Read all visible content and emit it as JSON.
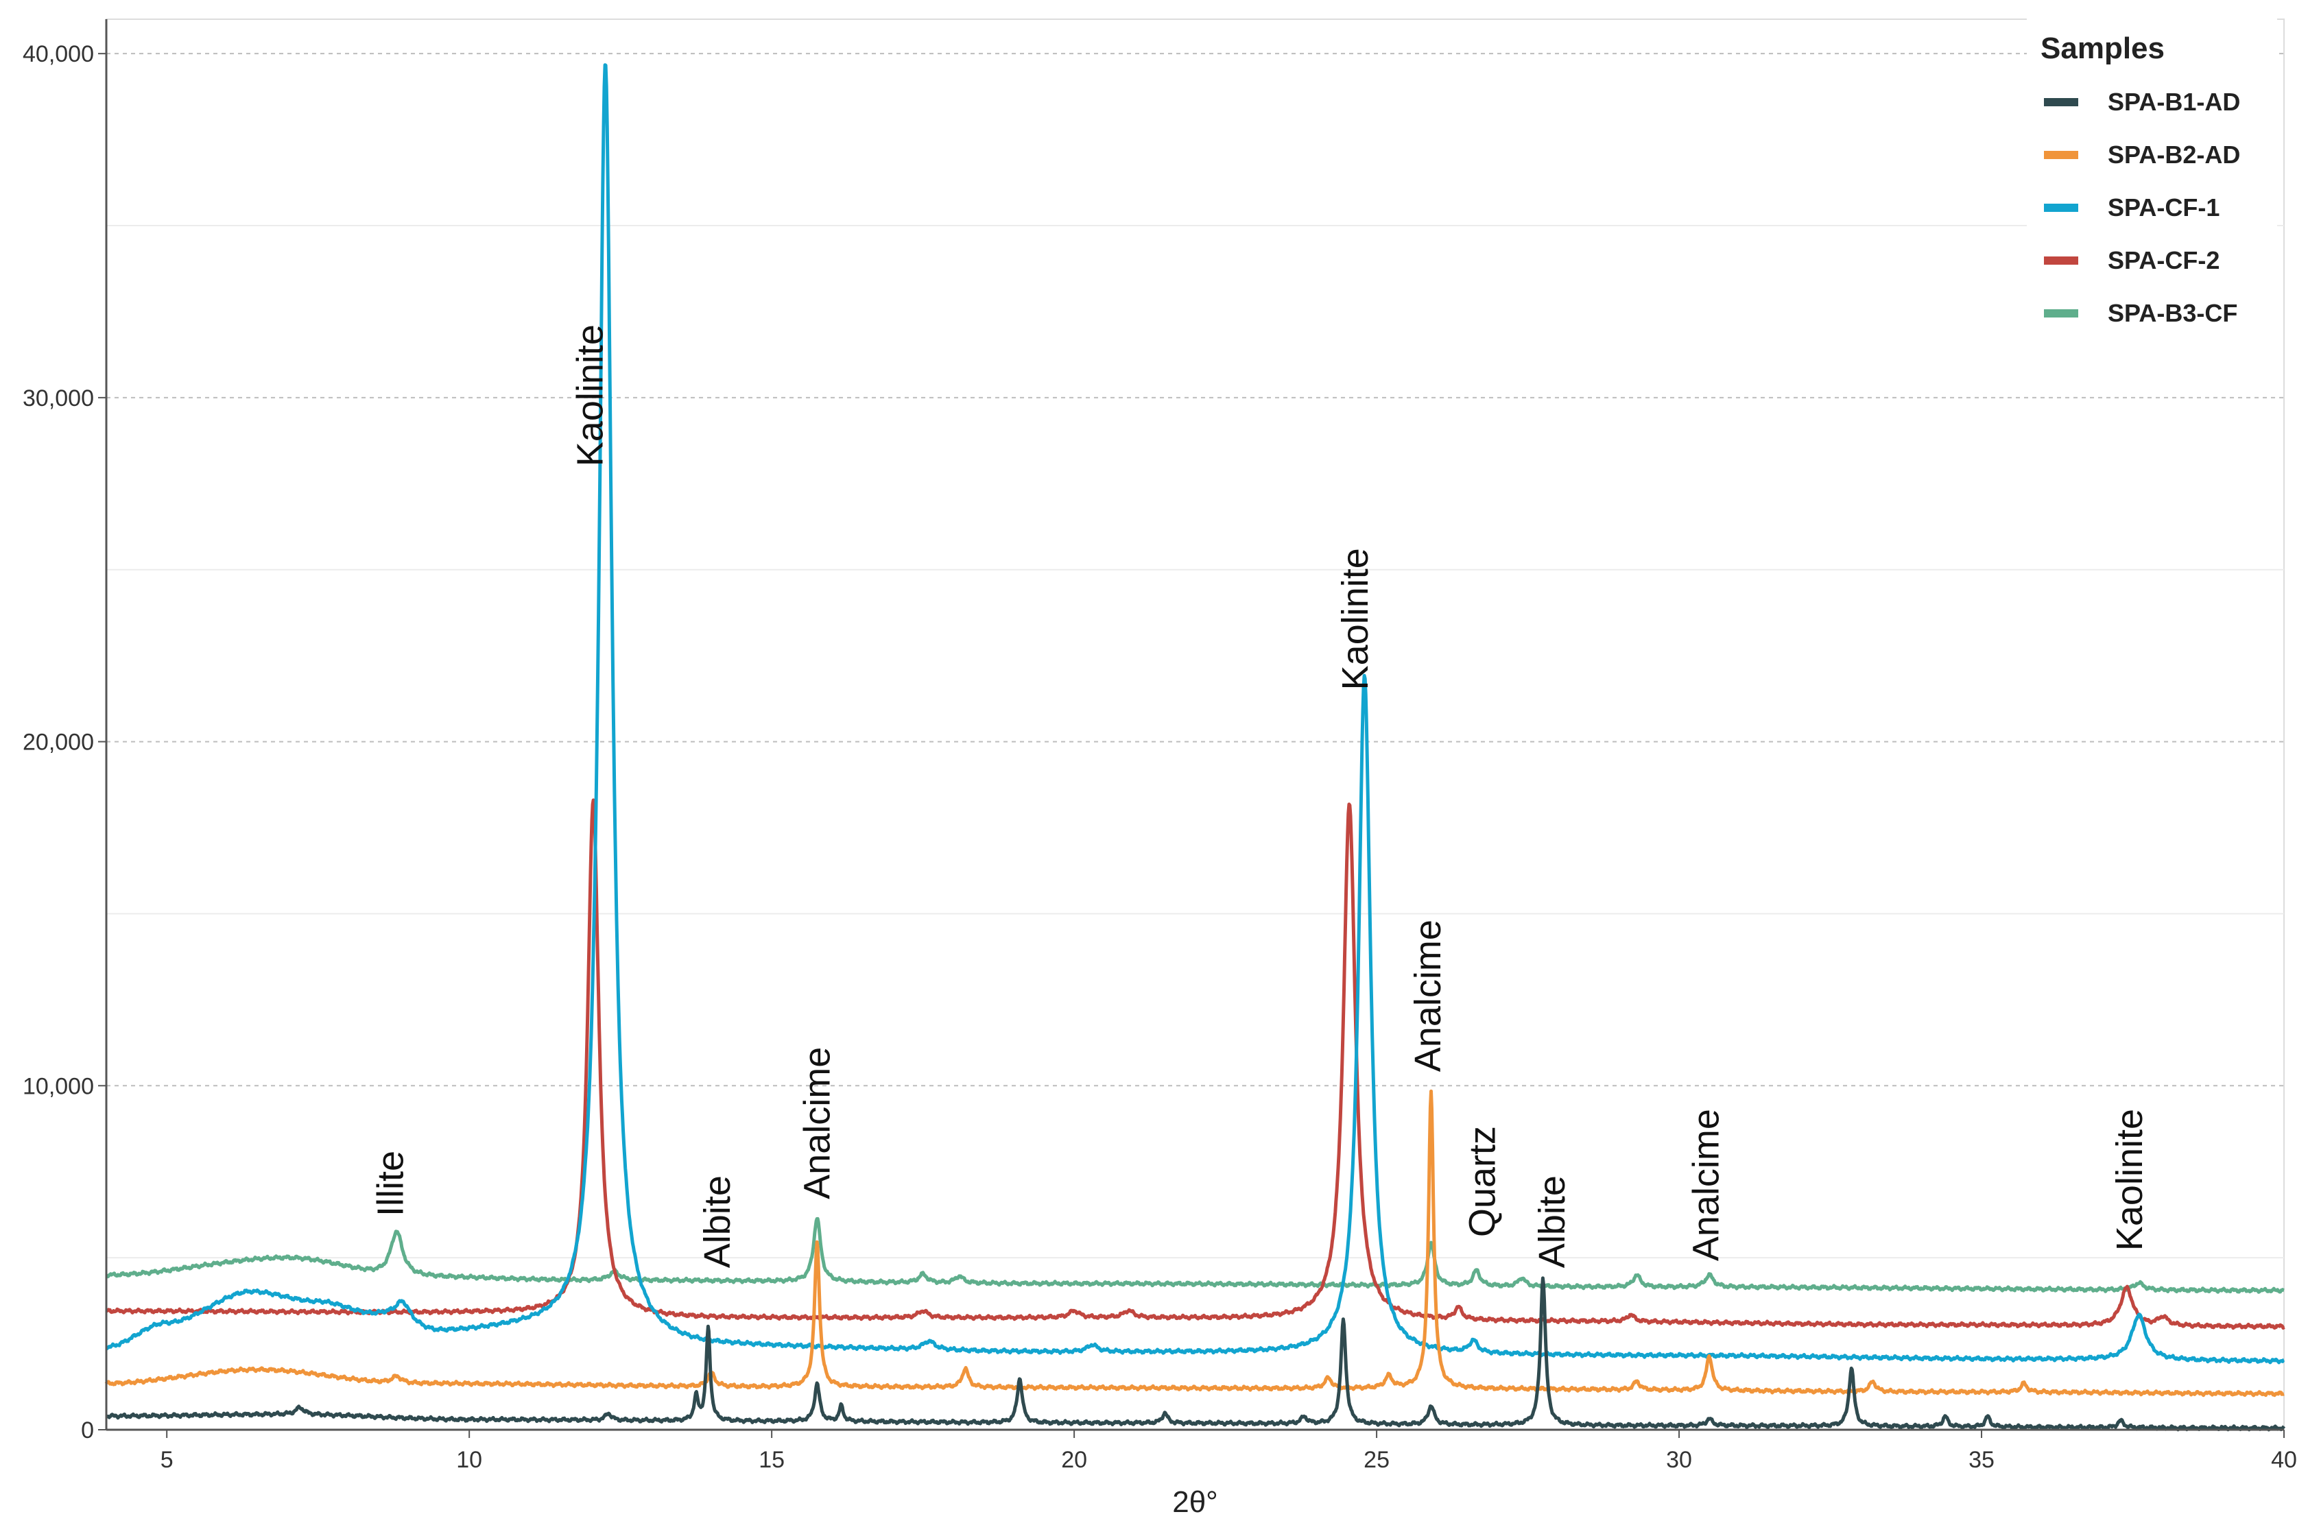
{
  "chart_data": {
    "type": "line",
    "title": "",
    "xlabel": "2θ°",
    "ylabel": "",
    "xlim": [
      4,
      40
    ],
    "ylim": [
      0,
      41000
    ],
    "x_ticks": [
      5,
      10,
      15,
      20,
      25,
      30,
      35,
      40
    ],
    "y_ticks": [
      0,
      10000,
      20000,
      30000,
      40000
    ],
    "y_tick_labels": [
      "0",
      "10,000",
      "20,000",
      "30,000",
      "40,000"
    ],
    "x_tick_labels": [
      "5",
      "10",
      "15",
      "20",
      "25",
      "30",
      "35",
      "40"
    ],
    "grid": "horizontal dashed",
    "legend": {
      "title": "Samples",
      "position": "top-right",
      "entries": [
        {
          "name": "SPA-B1-AD",
          "color": "#2f4a4f"
        },
        {
          "name": "SPA-B2-AD",
          "color": "#f0943a"
        },
        {
          "name": "SPA-CF-1",
          "color": "#12a4cf"
        },
        {
          "name": "SPA-CF-2",
          "color": "#c1463f"
        },
        {
          "name": "SPA-B3-CF",
          "color": "#5fae8c"
        }
      ]
    },
    "series": [
      {
        "name": "SPA-B3-CF",
        "color": "#5fae8c",
        "baseline": [
          [
            4,
            4500
          ],
          [
            7,
            5000
          ],
          [
            9,
            4450
          ],
          [
            12,
            4350
          ],
          [
            20,
            4250
          ],
          [
            30,
            4150
          ],
          [
            40,
            4050
          ]
        ],
        "peaks": [
          [
            8.8,
            1300,
            0.12
          ],
          [
            12.4,
            250,
            0.1
          ],
          [
            15.75,
            1850,
            0.07
          ],
          [
            17.5,
            250,
            0.08
          ],
          [
            18.1,
            200,
            0.08
          ],
          [
            25.9,
            1250,
            0.07
          ],
          [
            26.65,
            450,
            0.07
          ],
          [
            27.4,
            250,
            0.07
          ],
          [
            29.3,
            350,
            0.07
          ],
          [
            30.5,
            350,
            0.08
          ],
          [
            37.6,
            200,
            0.1
          ]
        ]
      },
      {
        "name": "SPA-CF-2",
        "color": "#c1463f",
        "baseline": [
          [
            4,
            3450
          ],
          [
            10,
            3400
          ],
          [
            14,
            3250
          ],
          [
            20,
            3250
          ],
          [
            28,
            3150
          ],
          [
            34,
            3050
          ],
          [
            40,
            3000
          ]
        ],
        "peaks": [
          [
            12.05,
            15000,
            0.11
          ],
          [
            17.5,
            200,
            0.1
          ],
          [
            20.0,
            200,
            0.1
          ],
          [
            20.9,
            200,
            0.1
          ],
          [
            24.55,
            15000,
            0.12
          ],
          [
            26.35,
            350,
            0.07
          ],
          [
            29.2,
            200,
            0.07
          ],
          [
            37.4,
            1100,
            0.12
          ],
          [
            38.0,
            250,
            0.1
          ]
        ]
      },
      {
        "name": "SPA-CF-1",
        "color": "#12a4cf",
        "baseline": [
          [
            4,
            2400
          ],
          [
            5,
            3100
          ],
          [
            6.4,
            4000
          ],
          [
            7.5,
            3700
          ],
          [
            8.5,
            3300
          ],
          [
            9.5,
            2800
          ],
          [
            11,
            2900
          ],
          [
            14,
            2400
          ],
          [
            20,
            2250
          ],
          [
            30,
            2150
          ],
          [
            36,
            2050
          ],
          [
            40,
            2000
          ]
        ],
        "peaks": [
          [
            8.9,
            550,
            0.15
          ],
          [
            12.25,
            37000,
            0.13
          ],
          [
            17.6,
            250,
            0.12
          ],
          [
            20.3,
            200,
            0.1
          ],
          [
            24.8,
            19700,
            0.12
          ],
          [
            26.6,
            350,
            0.08
          ],
          [
            37.6,
            1300,
            0.14
          ]
        ]
      },
      {
        "name": "SPA-B2-AD",
        "color": "#f0943a",
        "baseline": [
          [
            4,
            1350
          ],
          [
            6.5,
            1750
          ],
          [
            9,
            1350
          ],
          [
            15,
            1250
          ],
          [
            25,
            1200
          ],
          [
            35,
            1100
          ],
          [
            40,
            1050
          ]
        ],
        "peaks": [
          [
            8.8,
            200,
            0.1
          ],
          [
            14.0,
            400,
            0.07
          ],
          [
            15.75,
            4200,
            0.05
          ],
          [
            18.2,
            550,
            0.06
          ],
          [
            24.2,
            300,
            0.07
          ],
          [
            25.2,
            350,
            0.07
          ],
          [
            25.9,
            8600,
            0.05
          ],
          [
            29.3,
            250,
            0.06
          ],
          [
            30.5,
            1000,
            0.06
          ],
          [
            33.2,
            300,
            0.06
          ],
          [
            35.7,
            250,
            0.06
          ]
        ]
      },
      {
        "name": "SPA-B1-AD",
        "color": "#2f4a4f",
        "baseline": [
          [
            4,
            400
          ],
          [
            7,
            450
          ],
          [
            10,
            300
          ],
          [
            15,
            250
          ],
          [
            20,
            200
          ],
          [
            30,
            120
          ],
          [
            40,
            50
          ]
        ],
        "peaks": [
          [
            7.2,
            200,
            0.08
          ],
          [
            12.3,
            200,
            0.06
          ],
          [
            13.75,
            700,
            0.04
          ],
          [
            13.95,
            2700,
            0.04
          ],
          [
            15.75,
            1100,
            0.05
          ],
          [
            16.15,
            450,
            0.04
          ],
          [
            19.1,
            1300,
            0.05
          ],
          [
            21.5,
            300,
            0.05
          ],
          [
            23.8,
            200,
            0.06
          ],
          [
            24.45,
            3000,
            0.05
          ],
          [
            25.9,
            550,
            0.06
          ],
          [
            27.75,
            4300,
            0.05
          ],
          [
            30.5,
            200,
            0.06
          ],
          [
            32.85,
            1700,
            0.05
          ],
          [
            34.4,
            300,
            0.05
          ],
          [
            35.1,
            300,
            0.05
          ],
          [
            37.3,
            200,
            0.06
          ]
        ]
      }
    ],
    "annotations": [
      {
        "text": "Illite",
        "x": 8.7,
        "y": 6200
      },
      {
        "text": "Kaolinite",
        "x": 12.0,
        "y": 28000
      },
      {
        "text": "Albite",
        "x": 14.1,
        "y": 4700
      },
      {
        "text": "Analcime",
        "x": 15.75,
        "y": 6700
      },
      {
        "text": "Kaolinite",
        "x": 24.65,
        "y": 21500
      },
      {
        "text": "Analcime",
        "x": 25.85,
        "y": 10400
      },
      {
        "text": "Quartz",
        "x": 26.75,
        "y": 5600
      },
      {
        "text": "Albite",
        "x": 27.9,
        "y": 4700
      },
      {
        "text": "Analcime",
        "x": 30.45,
        "y": 4900
      },
      {
        "text": "Kaolinite",
        "x": 37.45,
        "y": 5200
      }
    ]
  }
}
